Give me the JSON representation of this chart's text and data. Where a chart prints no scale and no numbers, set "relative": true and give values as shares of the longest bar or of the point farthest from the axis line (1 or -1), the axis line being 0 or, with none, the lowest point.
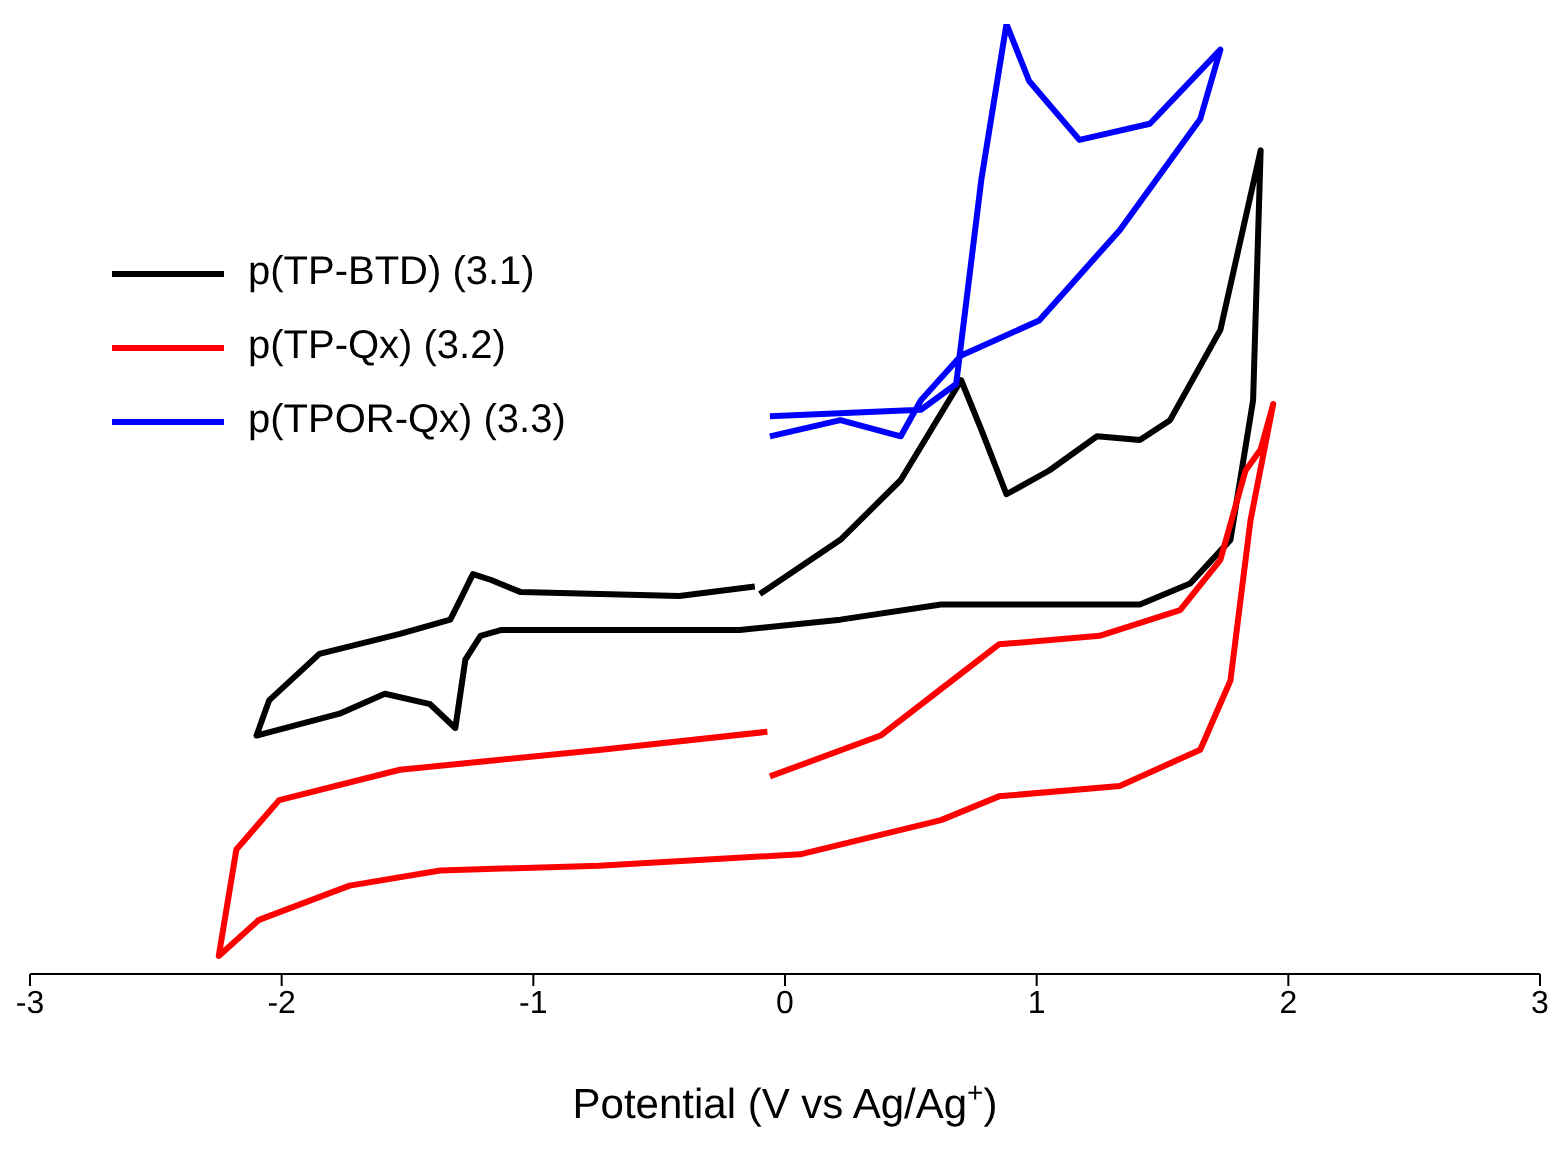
{
  "chart_data": {
    "type": "line",
    "relative": true,
    "xlabel": "Potential (V vs Ag/Ag$^{+}$)",
    "xlim": [
      -3,
      3
    ],
    "xticks": [
      -3,
      -2,
      -1,
      0,
      1,
      2,
      3
    ],
    "legend": "top left",
    "grid": false,
    "series": [
      {
        "name": "p(TP-BTD) (3.1)",
        "color": "#000000",
        "x": [
          -0.1,
          0.22,
          0.46,
          0.7,
          0.78,
          0.88,
          1.05,
          1.24,
          1.41,
          1.53,
          1.73,
          1.89,
          1.86,
          1.77,
          1.61,
          1.41,
          1.01,
          0.62,
          0.22,
          -0.18,
          -0.74,
          -1.13,
          -1.21,
          -1.27,
          -1.31,
          -1.41,
          -1.59,
          -1.77,
          -2.1,
          -2.05,
          -1.85,
          -1.53,
          -1.33,
          -1.29,
          -1.24,
          -1.17,
          -1.05,
          -0.42,
          -0.12
        ],
        "values": [
          0.4,
          0.457,
          0.52,
          0.625,
          0.573,
          0.505,
          0.53,
          0.566,
          0.562,
          0.583,
          0.678,
          0.867,
          0.604,
          0.457,
          0.411,
          0.389,
          0.389,
          0.389,
          0.373,
          0.362,
          0.362,
          0.362,
          0.356,
          0.331,
          0.259,
          0.284,
          0.295,
          0.274,
          0.251,
          0.288,
          0.337,
          0.358,
          0.373,
          0.394,
          0.421,
          0.415,
          0.402,
          0.398,
          0.408
        ]
      },
      {
        "name": "p(TP-Qx) (3.2)",
        "color": "#ff0000",
        "x": [
          -0.07,
          -0.73,
          -1.53,
          -2.01,
          -2.18,
          -2.25,
          -2.09,
          -1.73,
          -1.37,
          -0.74,
          0.06,
          0.62,
          0.85,
          1.33,
          1.65,
          1.77,
          1.85,
          1.94,
          1.89,
          1.83,
          1.73,
          1.57,
          1.25,
          0.85,
          0.62,
          0.38,
          -0.06
        ],
        "values": [
          0.255,
          0.236,
          0.215,
          0.183,
          0.131,
          0.019,
          0.057,
          0.093,
          0.109,
          0.114,
          0.126,
          0.162,
          0.187,
          0.198,
          0.236,
          0.309,
          0.478,
          0.6,
          0.552,
          0.53,
          0.436,
          0.383,
          0.356,
          0.347,
          0.3,
          0.251,
          0.208
        ]
      },
      {
        "name": "p(TPOR-Qx) (3.3)",
        "color": "#0000ff",
        "x": [
          -0.06,
          0.54,
          0.68,
          0.78,
          0.88,
          0.97,
          1.17,
          1.45,
          1.73,
          1.65,
          1.33,
          1.01,
          0.7,
          0.54,
          0.46,
          0.22,
          -0.06
        ],
        "values": [
          0.587,
          0.594,
          0.621,
          0.836,
          1.0,
          0.94,
          0.878,
          0.895,
          0.973,
          0.9,
          0.783,
          0.688,
          0.651,
          0.604,
          0.566,
          0.583,
          0.566
        ]
      }
    ]
  }
}
